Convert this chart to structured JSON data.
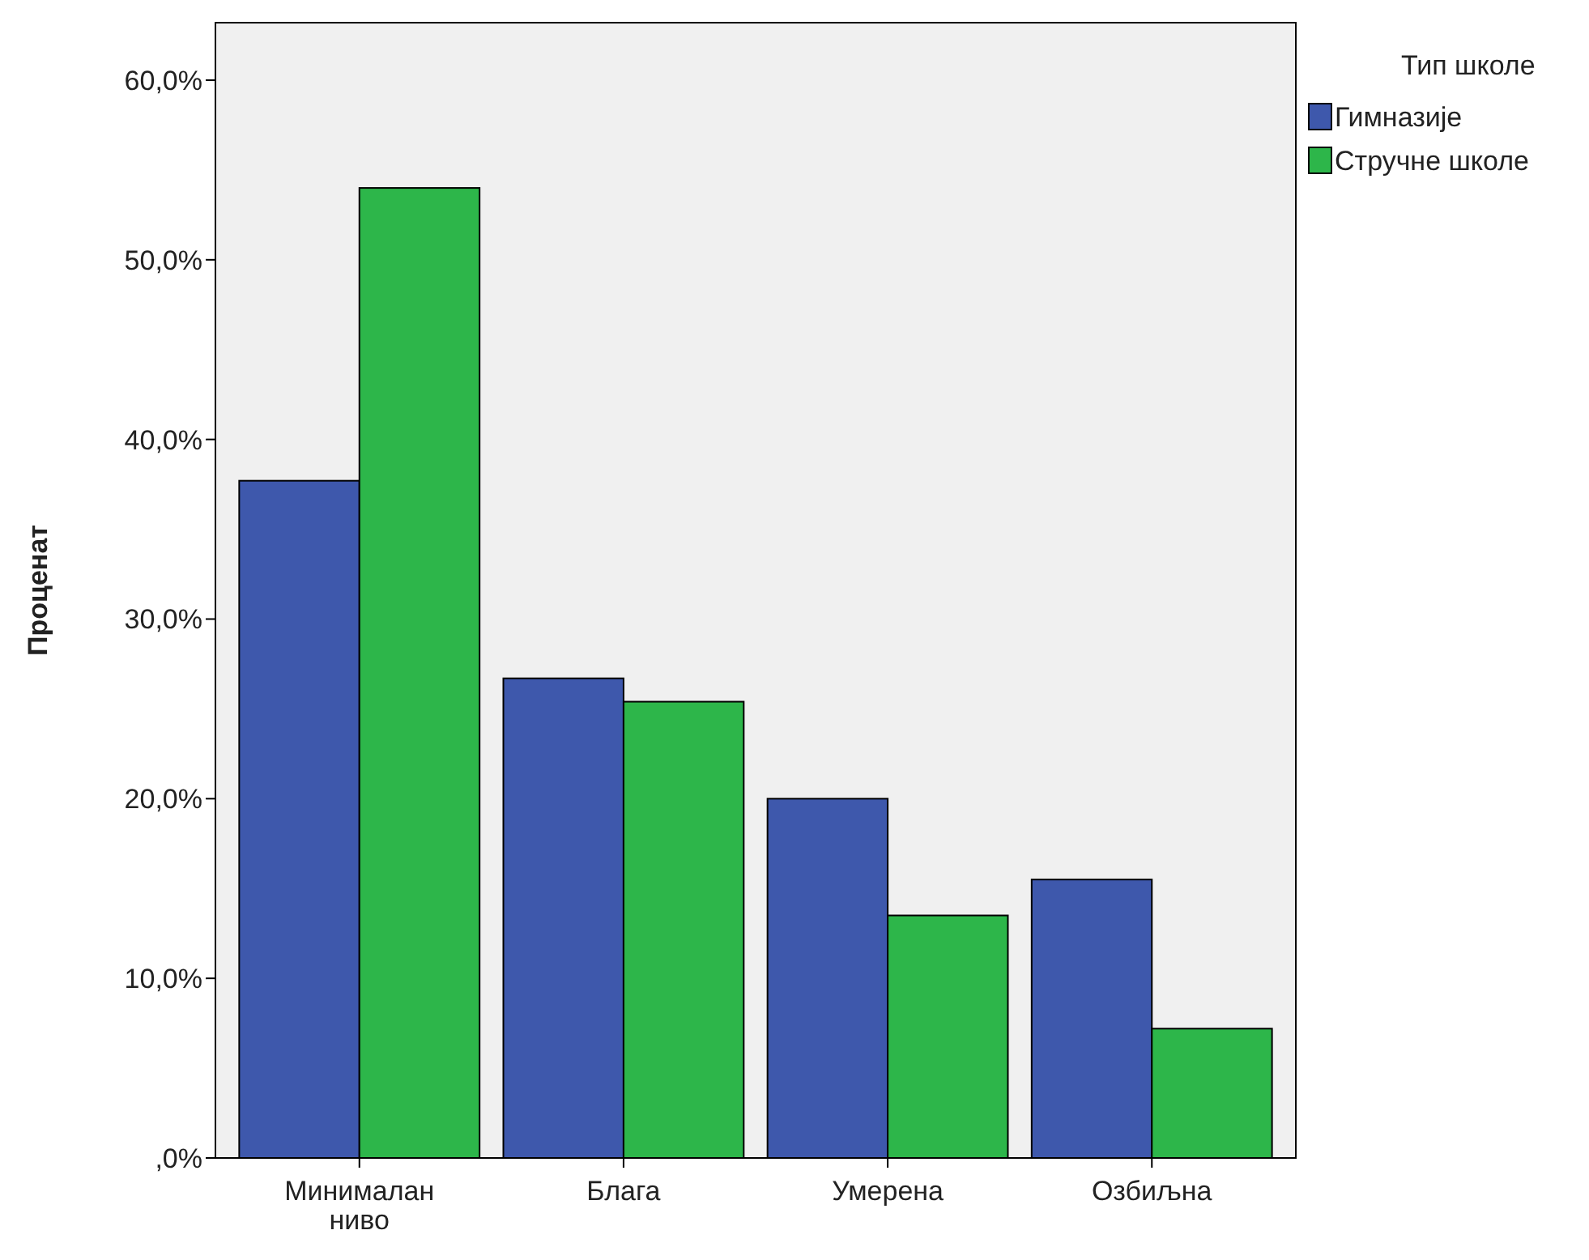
{
  "chart_data": {
    "type": "bar",
    "ylabel": "Проценат",
    "legend_title": "Тип школе",
    "legend": "top right",
    "grid": false,
    "categories": [
      "Минималан ниво",
      "Блага",
      "Умерена",
      "Озбиљна"
    ],
    "series": [
      {
        "name": "Гимназије",
        "color": "#3e58ac",
        "values": [
          37.7,
          26.7,
          20.0,
          15.5
        ]
      },
      {
        "name": "Стручне школе",
        "color": "#2db64a",
        "values": [
          54.0,
          25.4,
          13.5,
          7.2
        ]
      }
    ],
    "ylim": [
      0,
      63.2
    ],
    "yticks": [
      {
        "value": 0,
        "label": ",0%"
      },
      {
        "value": 10,
        "label": "10,0%"
      },
      {
        "value": 20,
        "label": "20,0%"
      },
      {
        "value": 30,
        "label": "30,0%"
      },
      {
        "value": 40,
        "label": "40,0%"
      },
      {
        "value": 50,
        "label": "50,0%"
      },
      {
        "value": 60,
        "label": "60,0%"
      }
    ]
  }
}
